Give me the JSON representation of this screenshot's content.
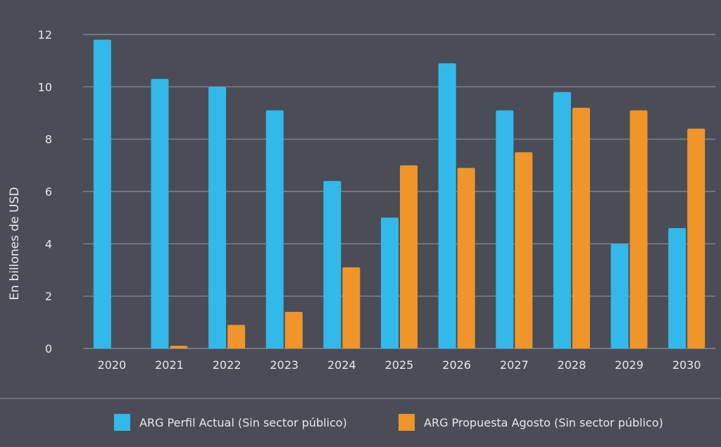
{
  "chart_data": {
    "type": "bar",
    "ylabel": "En billones de USD",
    "xlabel": "",
    "categories": [
      "2020",
      "2021",
      "2022",
      "2023",
      "2024",
      "2025",
      "2026",
      "2027",
      "2028",
      "2029",
      "2030"
    ],
    "ylim": [
      0,
      12
    ],
    "yticks": [
      0,
      2,
      4,
      6,
      8,
      10,
      12
    ],
    "grid": true,
    "legend_position": "bottom",
    "series": [
      {
        "name": "ARG Perfil Actual (Sin sector público)",
        "color": "#33b8ea",
        "values": [
          11.8,
          10.3,
          10.0,
          9.1,
          6.4,
          5.0,
          10.9,
          9.1,
          9.8,
          4.0,
          4.6
        ]
      },
      {
        "name": "ARG Propuesta Agosto (Sin sector público)",
        "color": "#f0952a",
        "values": [
          0,
          0.1,
          0.9,
          1.4,
          3.1,
          7.0,
          6.9,
          7.5,
          9.2,
          9.1,
          8.4
        ]
      }
    ]
  },
  "colors": {
    "background": "#4a4d56",
    "gridline": "#8e919a",
    "text": "#e8e8ec"
  }
}
